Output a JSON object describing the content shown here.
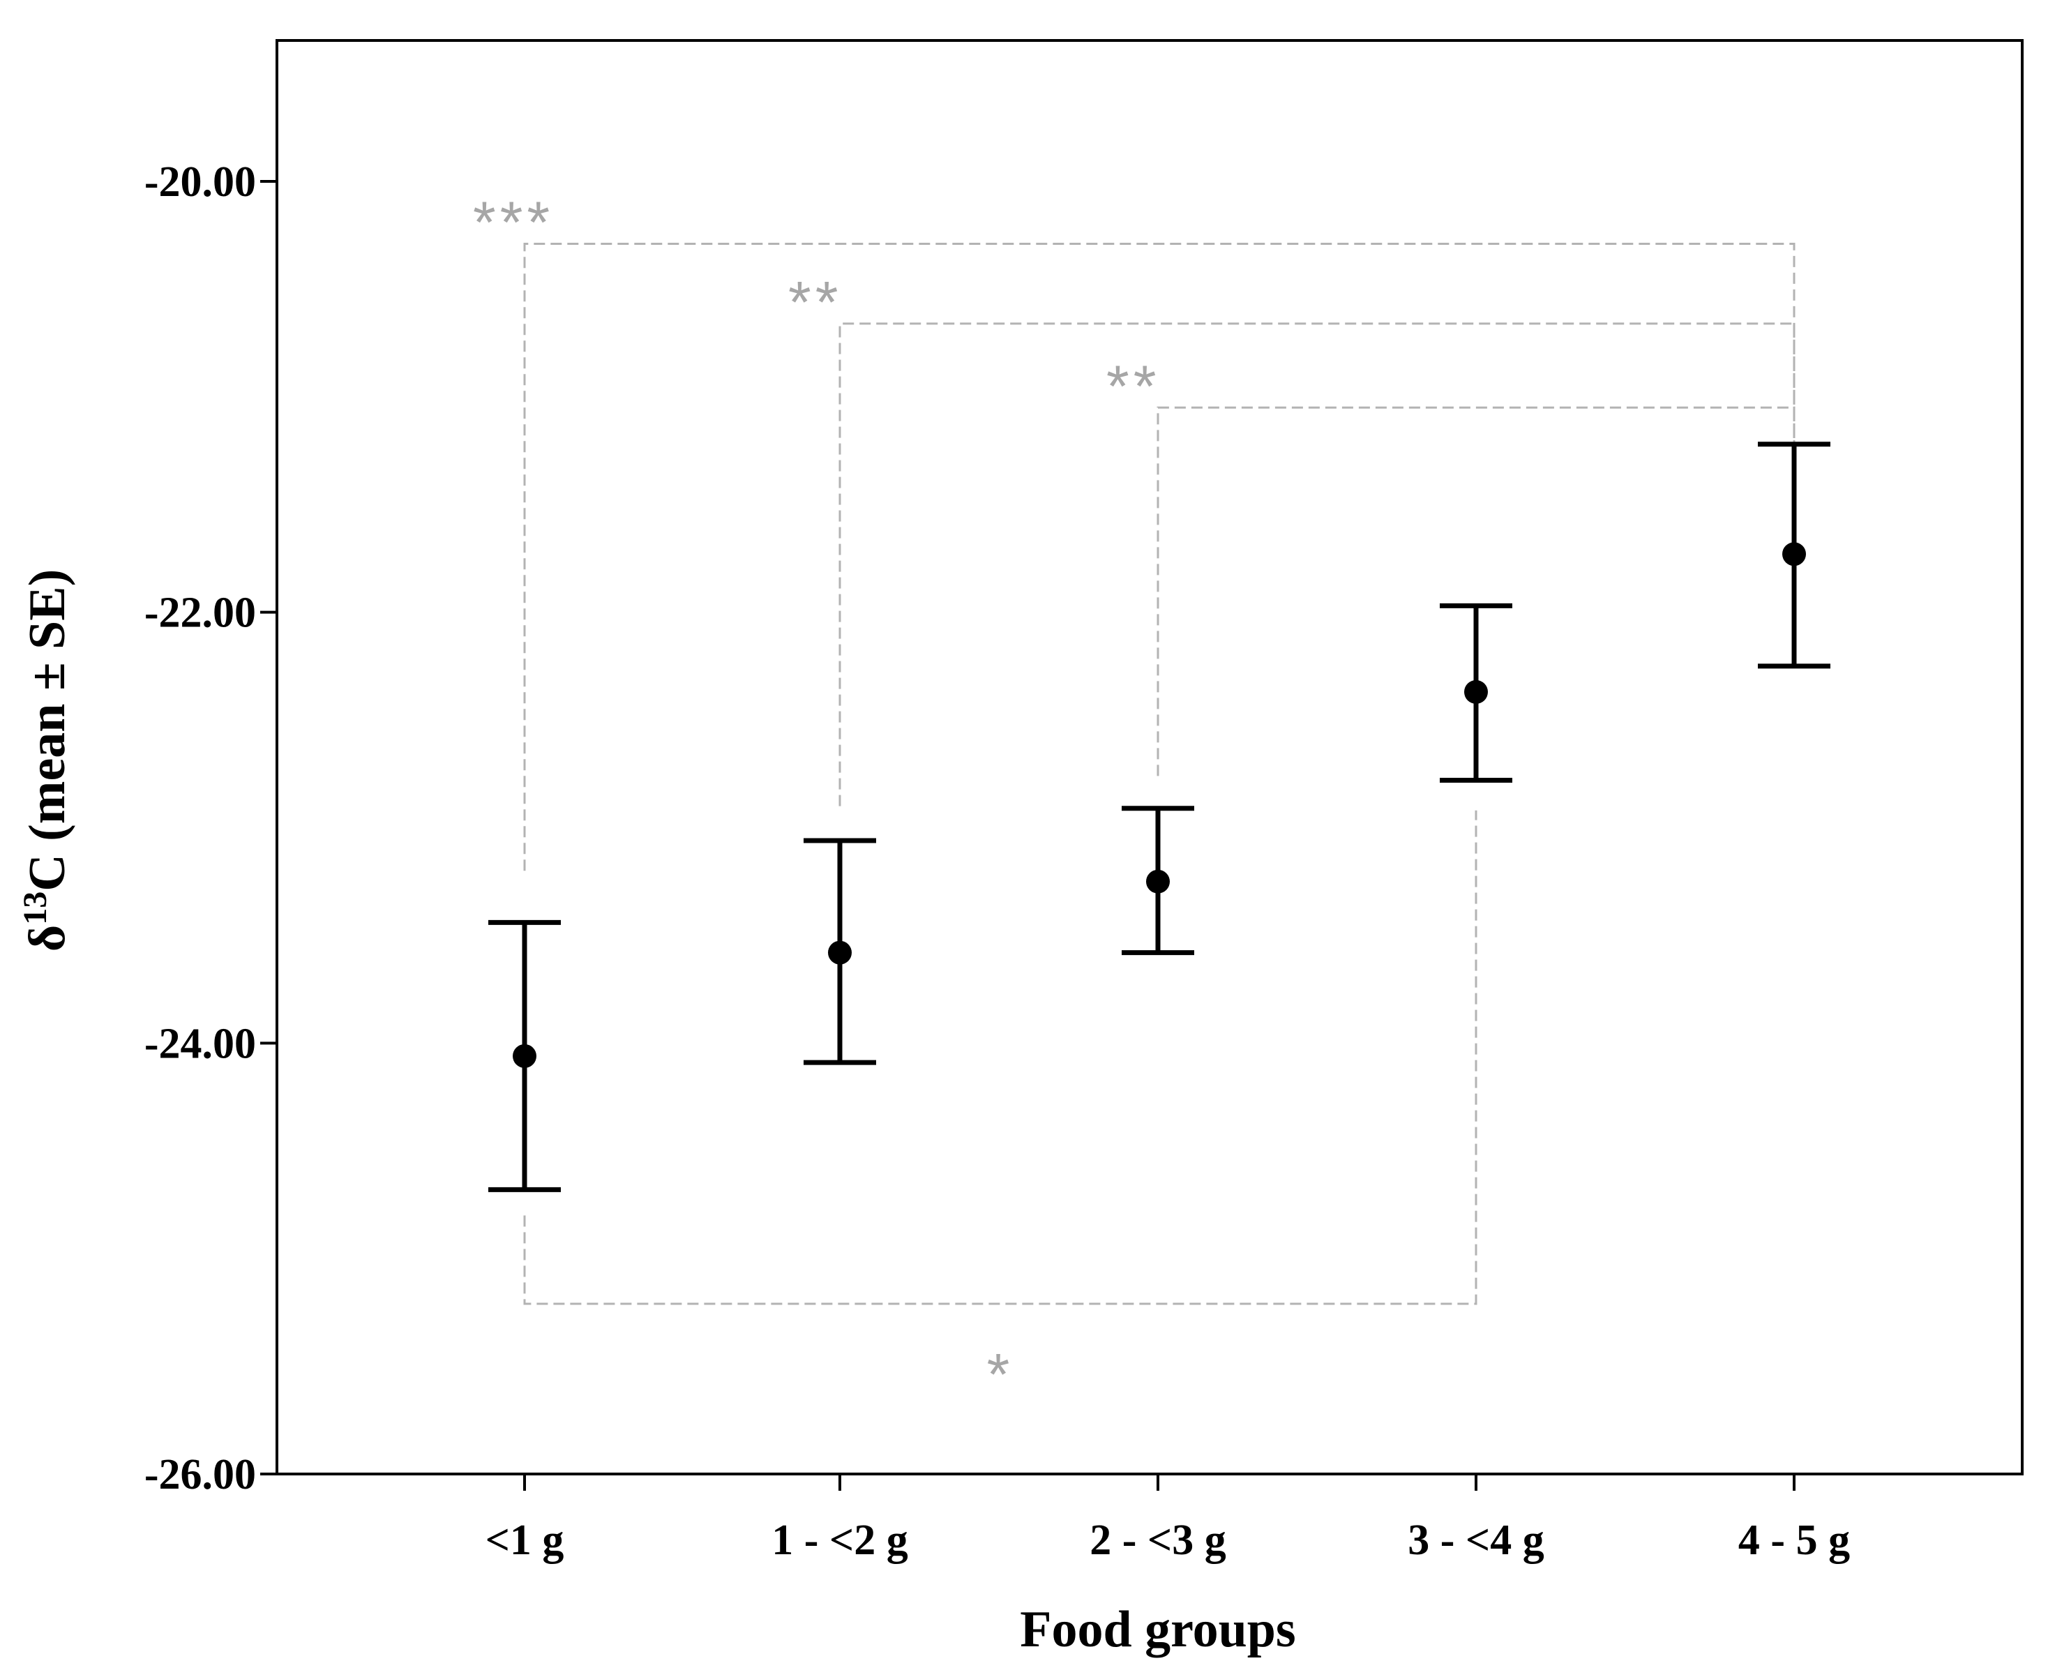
{
  "chart_data": {
    "type": "errorbar",
    "title": "",
    "xlabel": "Food groups",
    "ylabel": {
      "prefix": "δ",
      "superscript": "13",
      "suffix": "C (mean ± SE)"
    },
    "categories": [
      "<1 g",
      "1 - <2 g",
      "2 - <3 g",
      "3 - <4 g",
      "4 - 5 g"
    ],
    "series": [
      {
        "name": "δ13C",
        "means": [
          -24.06,
          -23.58,
          -23.25,
          -22.37,
          -21.73
        ],
        "lower": [
          -24.68,
          -24.09,
          -23.58,
          -22.78,
          -22.25
        ],
        "upper": [
          -23.44,
          -23.06,
          -22.91,
          -21.97,
          -21.22
        ]
      }
    ],
    "ylim": [
      -26.0,
      -19.4
    ],
    "yticks": [
      -20.0,
      -22.0,
      -24.0,
      -26.0
    ],
    "ytick_labels": [
      "-20.00",
      "-22.00",
      "-24.00",
      "-26.00"
    ],
    "significance": [
      {
        "label": "***",
        "from": 0,
        "to": 4,
        "level": -20.29,
        "side": "top",
        "from_start": -23.2,
        "to_start": -21.22
      },
      {
        "label": "**",
        "from": 1,
        "to": 4,
        "level": -20.66,
        "side": "top",
        "from_start": -22.9,
        "to_start": -21.22
      },
      {
        "label": "**",
        "from": 2,
        "to": 4,
        "level": -21.05,
        "side": "top",
        "from_start": -22.76,
        "to_start": -21.22
      },
      {
        "label": "*",
        "from": 0,
        "to": 3,
        "level": -25.21,
        "side": "bottom",
        "from_start": -24.8,
        "to_start": -22.92
      }
    ],
    "colors": {
      "marks": "#000000",
      "brackets": "#b3b3b3",
      "sig_text": "#a6a6a6",
      "frame": "#000000"
    },
    "grid": false
  }
}
